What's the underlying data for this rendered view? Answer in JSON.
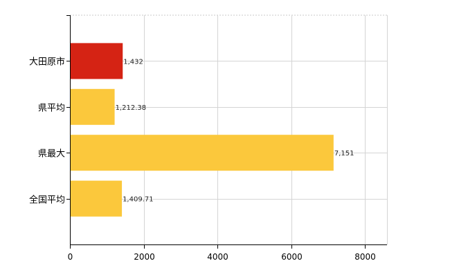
{
  "chart_data": {
    "type": "bar",
    "orientation": "horizontal",
    "categories": [
      "大田原市",
      "県平均",
      "県最大",
      "全国平均"
    ],
    "values": [
      1432,
      1212.38,
      7151,
      1409.71
    ],
    "value_labels": [
      "1,432",
      "1,212.38",
      "7,151",
      "1,409.71"
    ],
    "bar_colors": [
      "#d52314",
      "#fbc83c",
      "#fbc83c",
      "#fbc83c"
    ],
    "xlim": [
      0,
      8600
    ],
    "xticks": [
      0,
      2000,
      4000,
      6000,
      8000
    ],
    "xtick_labels": [
      "0",
      "2000",
      "4000",
      "6000",
      "8000"
    ],
    "grid": true,
    "title": "",
    "xlabel": "",
    "ylabel": ""
  }
}
